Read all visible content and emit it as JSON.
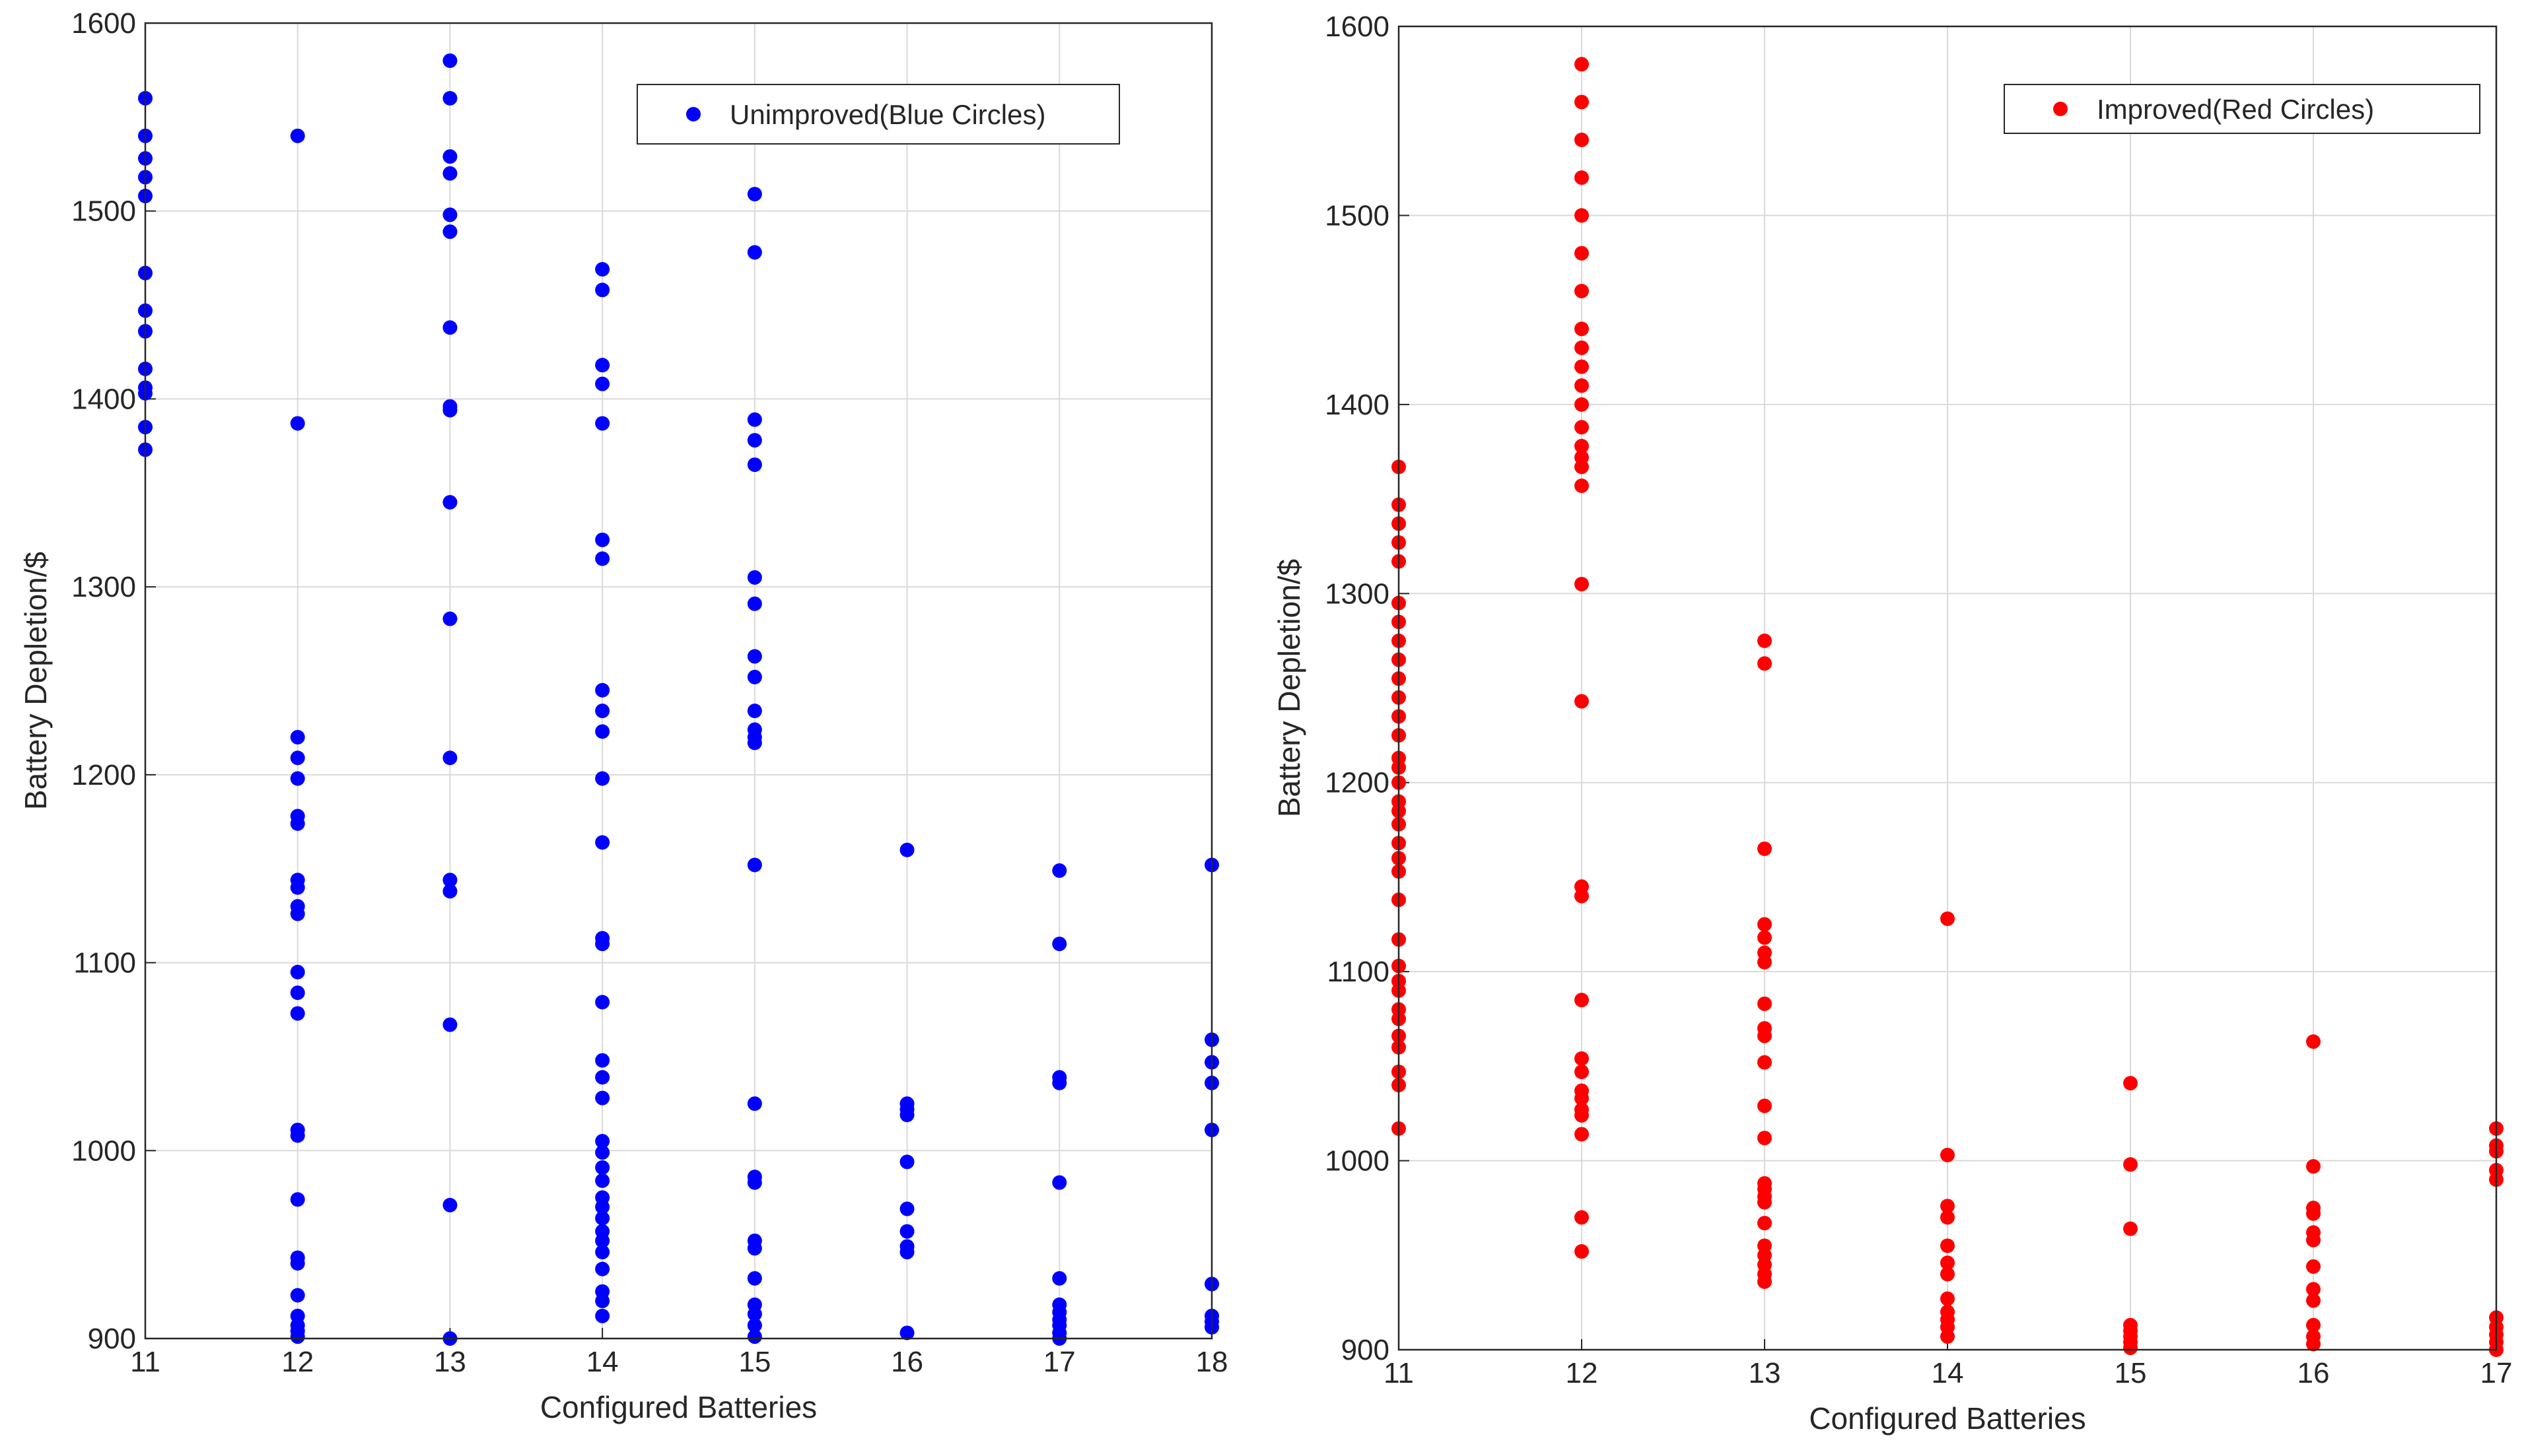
{
  "chart_data": [
    {
      "type": "scatter",
      "xlabel": "Configured Batteries",
      "ylabel": "Battery Depletion/$",
      "xlim": [
        11,
        18
      ],
      "ylim": [
        900,
        1600
      ],
      "xticks": [
        "11",
        "12",
        "13",
        "14",
        "15",
        "16",
        "17",
        "18"
      ],
      "yticks": [
        "900",
        "1000",
        "1100",
        "1200",
        "1300",
        "1400",
        "1500",
        "1600"
      ],
      "grid": true,
      "legend_position": "top-right",
      "series": [
        {
          "name": "Unimproved(Blue Circles)",
          "color": "#0000ff",
          "points": [
            [
              11,
              1560
            ],
            [
              11,
              1540
            ],
            [
              11,
              1528
            ],
            [
              11,
              1518
            ],
            [
              11,
              1508
            ],
            [
              11,
              1467
            ],
            [
              11,
              1447
            ],
            [
              11,
              1436
            ],
            [
              11,
              1416
            ],
            [
              11,
              1406
            ],
            [
              11,
              1403
            ],
            [
              11,
              1385
            ],
            [
              11,
              1373
            ],
            [
              12,
              1540
            ],
            [
              12,
              1387
            ],
            [
              12,
              1220
            ],
            [
              12,
              1209
            ],
            [
              12,
              1198
            ],
            [
              12,
              1178
            ],
            [
              12,
              1174
            ],
            [
              12,
              1144
            ],
            [
              12,
              1140
            ],
            [
              12,
              1130
            ],
            [
              12,
              1126
            ],
            [
              12,
              1095
            ],
            [
              12,
              1084
            ],
            [
              12,
              1073
            ],
            [
              12,
              1011
            ],
            [
              12,
              1008
            ],
            [
              12,
              974
            ],
            [
              12,
              943
            ],
            [
              12,
              940
            ],
            [
              12,
              923
            ],
            [
              12,
              912
            ],
            [
              12,
              907
            ],
            [
              12,
              904
            ],
            [
              12,
              901
            ],
            [
              13,
              1580
            ],
            [
              13,
              1560
            ],
            [
              13,
              1529
            ],
            [
              13,
              1520
            ],
            [
              13,
              1498
            ],
            [
              13,
              1489
            ],
            [
              13,
              1438
            ],
            [
              13,
              1396
            ],
            [
              13,
              1394
            ],
            [
              13,
              1345
            ],
            [
              13,
              1283
            ],
            [
              13,
              1209
            ],
            [
              13,
              1144
            ],
            [
              13,
              1138
            ],
            [
              13,
              1067
            ],
            [
              13,
              971
            ],
            [
              13,
              900
            ],
            [
              14,
              1469
            ],
            [
              14,
              1458
            ],
            [
              14,
              1418
            ],
            [
              14,
              1408
            ],
            [
              14,
              1387
            ],
            [
              14,
              1325
            ],
            [
              14,
              1315
            ],
            [
              14,
              1245
            ],
            [
              14,
              1234
            ],
            [
              14,
              1223
            ],
            [
              14,
              1198
            ],
            [
              14,
              1164
            ],
            [
              14,
              1113
            ],
            [
              14,
              1110
            ],
            [
              14,
              1079
            ],
            [
              14,
              1048
            ],
            [
              14,
              1039
            ],
            [
              14,
              1028
            ],
            [
              14,
              1005
            ],
            [
              14,
              999
            ],
            [
              14,
              991
            ],
            [
              14,
              984
            ],
            [
              14,
              975
            ],
            [
              14,
              970
            ],
            [
              14,
              964
            ],
            [
              14,
              957
            ],
            [
              14,
              952
            ],
            [
              14,
              946
            ],
            [
              14,
              937
            ],
            [
              14,
              925
            ],
            [
              14,
              920
            ],
            [
              14,
              912
            ],
            [
              15,
              1509
            ],
            [
              15,
              1478
            ],
            [
              15,
              1389
            ],
            [
              15,
              1378
            ],
            [
              15,
              1365
            ],
            [
              15,
              1305
            ],
            [
              15,
              1291
            ],
            [
              15,
              1263
            ],
            [
              15,
              1252
            ],
            [
              15,
              1234
            ],
            [
              15,
              1224
            ],
            [
              15,
              1220
            ],
            [
              15,
              1217
            ],
            [
              15,
              1152
            ],
            [
              15,
              1025
            ],
            [
              15,
              986
            ],
            [
              15,
              983
            ],
            [
              15,
              952
            ],
            [
              15,
              948
            ],
            [
              15,
              932
            ],
            [
              15,
              918
            ],
            [
              15,
              913
            ],
            [
              15,
              907
            ],
            [
              15,
              901
            ],
            [
              16,
              1160
            ],
            [
              16,
              1025
            ],
            [
              16,
              1022
            ],
            [
              16,
              1019
            ],
            [
              16,
              994
            ],
            [
              16,
              969
            ],
            [
              16,
              957
            ],
            [
              16,
              949
            ],
            [
              16,
              946
            ],
            [
              16,
              903
            ],
            [
              17,
              1149
            ],
            [
              17,
              1110
            ],
            [
              17,
              1039
            ],
            [
              17,
              1036
            ],
            [
              17,
              983
            ],
            [
              17,
              932
            ],
            [
              17,
              918
            ],
            [
              17,
              914
            ],
            [
              17,
              910
            ],
            [
              17,
              907
            ],
            [
              17,
              903
            ],
            [
              17,
              900
            ],
            [
              18,
              1152
            ],
            [
              18,
              1059
            ],
            [
              18,
              1047
            ],
            [
              18,
              1036
            ],
            [
              18,
              1011
            ],
            [
              18,
              929
            ],
            [
              18,
              912
            ],
            [
              18,
              909
            ],
            [
              18,
              906
            ]
          ]
        }
      ]
    },
    {
      "type": "scatter",
      "xlabel": "Configured Batteries",
      "ylabel": "Battery Depletion/$",
      "xlim": [
        11,
        17
      ],
      "ylim": [
        900,
        1600
      ],
      "xticks": [
        "11",
        "12",
        "13",
        "14",
        "15",
        "16",
        "17"
      ],
      "yticks": [
        "900",
        "1000",
        "1100",
        "1200",
        "1300",
        "1400",
        "1500",
        "1600"
      ],
      "grid": true,
      "legend_position": "top-right",
      "series": [
        {
          "name": "Improved(Red Circles)",
          "color": "#ff0000",
          "points": [
            [
              11,
              1367
            ],
            [
              11,
              1347
            ],
            [
              11,
              1337
            ],
            [
              11,
              1327
            ],
            [
              11,
              1317
            ],
            [
              11,
              1295
            ],
            [
              11,
              1285
            ],
            [
              11,
              1275
            ],
            [
              11,
              1265
            ],
            [
              11,
              1255
            ],
            [
              11,
              1245
            ],
            [
              11,
              1235
            ],
            [
              11,
              1225
            ],
            [
              11,
              1213
            ],
            [
              11,
              1208
            ],
            [
              11,
              1200
            ],
            [
              11,
              1190
            ],
            [
              11,
              1185
            ],
            [
              11,
              1178
            ],
            [
              11,
              1168
            ],
            [
              11,
              1160
            ],
            [
              11,
              1153
            ],
            [
              11,
              1138
            ],
            [
              11,
              1117
            ],
            [
              11,
              1103
            ],
            [
              11,
              1095
            ],
            [
              11,
              1090
            ],
            [
              11,
              1080
            ],
            [
              11,
              1075
            ],
            [
              11,
              1066
            ],
            [
              11,
              1060
            ],
            [
              11,
              1047
            ],
            [
              11,
              1040
            ],
            [
              11,
              1017
            ],
            [
              12,
              1580
            ],
            [
              12,
              1560
            ],
            [
              12,
              1540
            ],
            [
              12,
              1520
            ],
            [
              12,
              1500
            ],
            [
              12,
              1480
            ],
            [
              12,
              1460
            ],
            [
              12,
              1440
            ],
            [
              12,
              1430
            ],
            [
              12,
              1420
            ],
            [
              12,
              1410
            ],
            [
              12,
              1400
            ],
            [
              12,
              1388
            ],
            [
              12,
              1378
            ],
            [
              12,
              1372
            ],
            [
              12,
              1367
            ],
            [
              12,
              1357
            ],
            [
              12,
              1305
            ],
            [
              12,
              1243
            ],
            [
              12,
              1145
            ],
            [
              12,
              1140
            ],
            [
              12,
              1085
            ],
            [
              12,
              1054
            ],
            [
              12,
              1047
            ],
            [
              12,
              1037
            ],
            [
              12,
              1033
            ],
            [
              12,
              1027
            ],
            [
              12,
              1024
            ],
            [
              12,
              1014
            ],
            [
              12,
              970
            ],
            [
              12,
              952
            ],
            [
              13,
              1275
            ],
            [
              13,
              1263
            ],
            [
              13,
              1165
            ],
            [
              13,
              1125
            ],
            [
              13,
              1118
            ],
            [
              13,
              1110
            ],
            [
              13,
              1105
            ],
            [
              13,
              1083
            ],
            [
              13,
              1070
            ],
            [
              13,
              1066
            ],
            [
              13,
              1052
            ],
            [
              13,
              1029
            ],
            [
              13,
              1012
            ],
            [
              13,
              988
            ],
            [
              13,
              985
            ],
            [
              13,
              981
            ],
            [
              13,
              978
            ],
            [
              13,
              967
            ],
            [
              13,
              955
            ],
            [
              13,
              950
            ],
            [
              13,
              945
            ],
            [
              13,
              940
            ],
            [
              13,
              936
            ],
            [
              14,
              1128
            ],
            [
              14,
              1003
            ],
            [
              14,
              976
            ],
            [
              14,
              970
            ],
            [
              14,
              955
            ],
            [
              14,
              946
            ],
            [
              14,
              940
            ],
            [
              14,
              927
            ],
            [
              14,
              920
            ],
            [
              14,
              916
            ],
            [
              14,
              912
            ],
            [
              14,
              907
            ],
            [
              15,
              1041
            ],
            [
              15,
              998
            ],
            [
              15,
              964
            ],
            [
              15,
              913
            ],
            [
              15,
              910
            ],
            [
              15,
              907
            ],
            [
              15,
              904
            ],
            [
              15,
              901
            ],
            [
              16,
              1063
            ],
            [
              16,
              997
            ],
            [
              16,
              975
            ],
            [
              16,
              972
            ],
            [
              16,
              962
            ],
            [
              16,
              958
            ],
            [
              16,
              944
            ],
            [
              16,
              932
            ],
            [
              16,
              926
            ],
            [
              16,
              913
            ],
            [
              16,
              907
            ],
            [
              16,
              903
            ],
            [
              17,
              1017
            ],
            [
              17,
              1008
            ],
            [
              17,
              1005
            ],
            [
              17,
              995
            ],
            [
              17,
              990
            ],
            [
              17,
              917
            ],
            [
              17,
              912
            ],
            [
              17,
              908
            ],
            [
              17,
              904
            ],
            [
              17,
              900
            ]
          ]
        }
      ]
    }
  ]
}
